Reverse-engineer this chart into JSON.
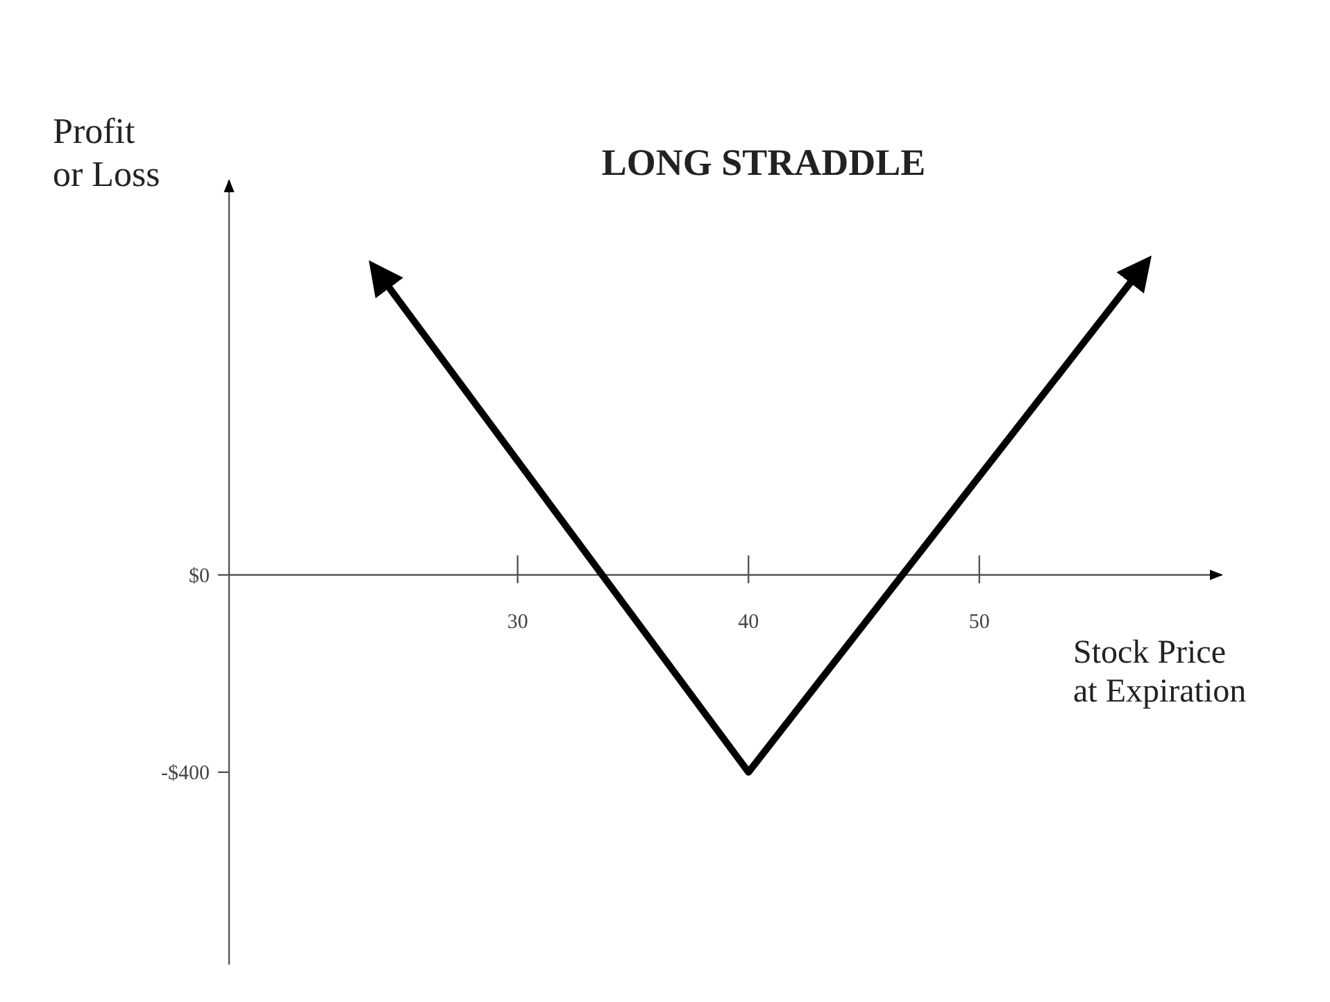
{
  "chart_data": {
    "type": "line",
    "title": "LONG STRADDLE",
    "xlabel": "Stock Price\nat Expiration",
    "ylabel": "Profit\nor Loss",
    "x": [
      24,
      40,
      57
    ],
    "series": [
      {
        "color": "#000000",
        "values": [
          610,
          -400,
          620
        ]
      }
    ],
    "xlim": [
      17.5,
      60.5
    ],
    "ylim": [
      -790,
      800
    ],
    "xticks": [
      30,
      40,
      50
    ],
    "yticks": [
      {
        "value": 0,
        "label": "$0"
      },
      {
        "value": -400,
        "label": "-$400"
      }
    ],
    "marker": "none",
    "line_style": "solid"
  }
}
